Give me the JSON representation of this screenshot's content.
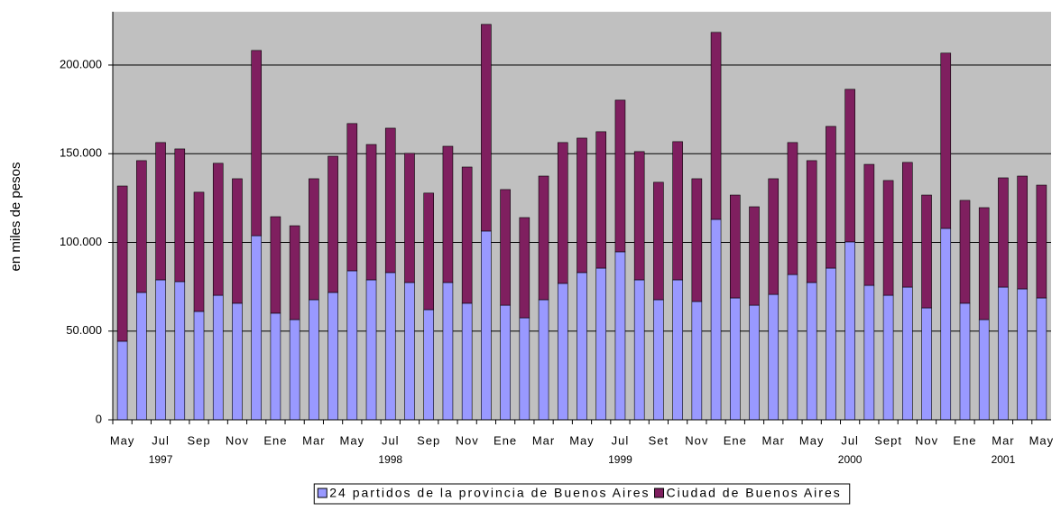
{
  "chart_data": {
    "type": "bar",
    "stacked": true,
    "y_label": "en miles de pesos",
    "categories": [
      "May",
      null,
      "Jul",
      null,
      "Sep",
      null,
      "Nov",
      null,
      "Ene",
      null,
      "Mar",
      null,
      "May",
      null,
      "Jul",
      null,
      "Sep",
      null,
      "Nov",
      null,
      "Ene",
      null,
      "Mar",
      null,
      "May",
      null,
      "Jul",
      null,
      "Set",
      null,
      "Nov",
      null,
      "Ene",
      null,
      "Mar",
      null,
      "May",
      null,
      "Jul",
      null,
      "Sept",
      null,
      "Nov",
      null,
      "Ene",
      null,
      "Mar",
      null,
      "May"
    ],
    "category_groups": [
      null,
      null,
      "1997",
      null,
      null,
      null,
      null,
      null,
      null,
      null,
      null,
      null,
      null,
      null,
      "1998",
      null,
      null,
      null,
      null,
      null,
      null,
      null,
      null,
      null,
      null,
      null,
      "1999",
      null,
      null,
      null,
      null,
      null,
      null,
      null,
      null,
      null,
      null,
      null,
      "2000",
      null,
      null,
      null,
      null,
      null,
      null,
      null,
      "2001",
      null,
      null
    ],
    "series": [
      {
        "name": "24 partidos de la provincia de Buenos Aires",
        "color": "#9999ff",
        "values": [
          44300,
          71800,
          78900,
          77900,
          61100,
          70200,
          65700,
          103800,
          60100,
          56500,
          67700,
          71800,
          84000,
          78900,
          83000,
          77400,
          62100,
          77400,
          65700,
          106400,
          64600,
          57500,
          67700,
          76900,
          83000,
          85500,
          94700,
          78900,
          67700,
          78900,
          66700,
          113000,
          68700,
          64600,
          70700,
          81900,
          77400,
          85500,
          100300,
          75800,
          70200,
          74800,
          63100,
          107900,
          65700,
          56500,
          74800,
          73800,
          68700
        ]
      },
      {
        "name": "Ciudad de Buenos Aires",
        "color": "#7f1f5f",
        "values": [
          87500,
          74300,
          77400,
          74800,
          67200,
          74400,
          70200,
          104400,
          54400,
          52900,
          68200,
          76800,
          83000,
          76300,
          81400,
          72800,
          65700,
          76800,
          76800,
          116500,
          65200,
          56500,
          69700,
          79400,
          75800,
          76900,
          85500,
          72300,
          66200,
          77900,
          69200,
          105400,
          58000,
          55500,
          65200,
          74400,
          68700,
          79900,
          86000,
          68200,
          64700,
          70300,
          63600,
          98800,
          58000,
          63100,
          61600,
          63600,
          63600
        ]
      }
    ],
    "ylim": [
      0,
      230000
    ],
    "yticks": [
      0,
      {
        "value": 50000,
        "label": "50.000"
      },
      {
        "value": 100000,
        "label": "100.000"
      },
      {
        "value": 150000,
        "label": "150.000"
      },
      {
        "value": 200000,
        "label": "200.000"
      }
    ],
    "grid": true,
    "plot_background": "#c0c0c0",
    "legend": "bottom"
  }
}
